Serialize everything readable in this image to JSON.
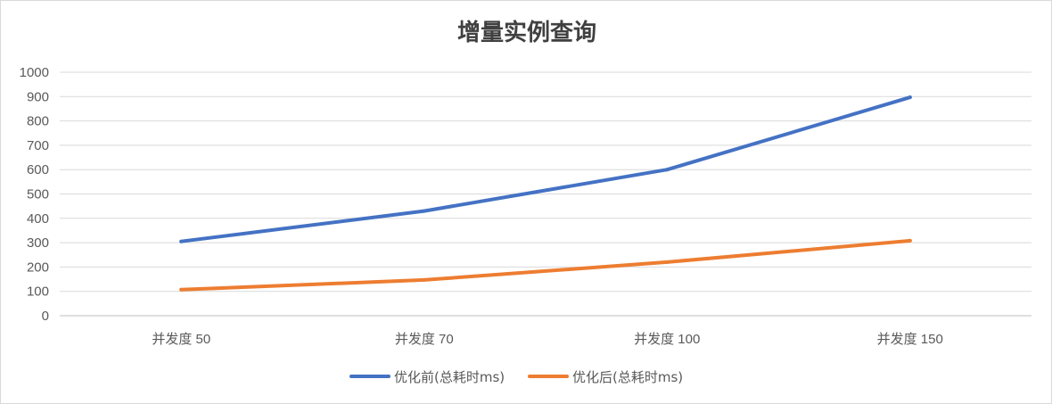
{
  "chart_data": {
    "type": "line",
    "title": "增量实例查询",
    "xlabel": "",
    "ylabel": "",
    "categories": [
      "并发度 50",
      "并发度 70",
      "并发度 100",
      "并发度 150"
    ],
    "ylim": [
      0,
      1000
    ],
    "yticks": [
      0,
      100,
      200,
      300,
      400,
      500,
      600,
      700,
      800,
      900,
      1000
    ],
    "grid": true,
    "legend_position": "bottom",
    "series": [
      {
        "name": "优化前(总耗时ms)",
        "color": "#4472C4",
        "values": [
          305,
          430,
          600,
          897
        ]
      },
      {
        "name": "优化后(总耗时ms)",
        "color": "#ED7D31",
        "values": [
          107,
          147,
          220,
          308
        ]
      }
    ]
  }
}
